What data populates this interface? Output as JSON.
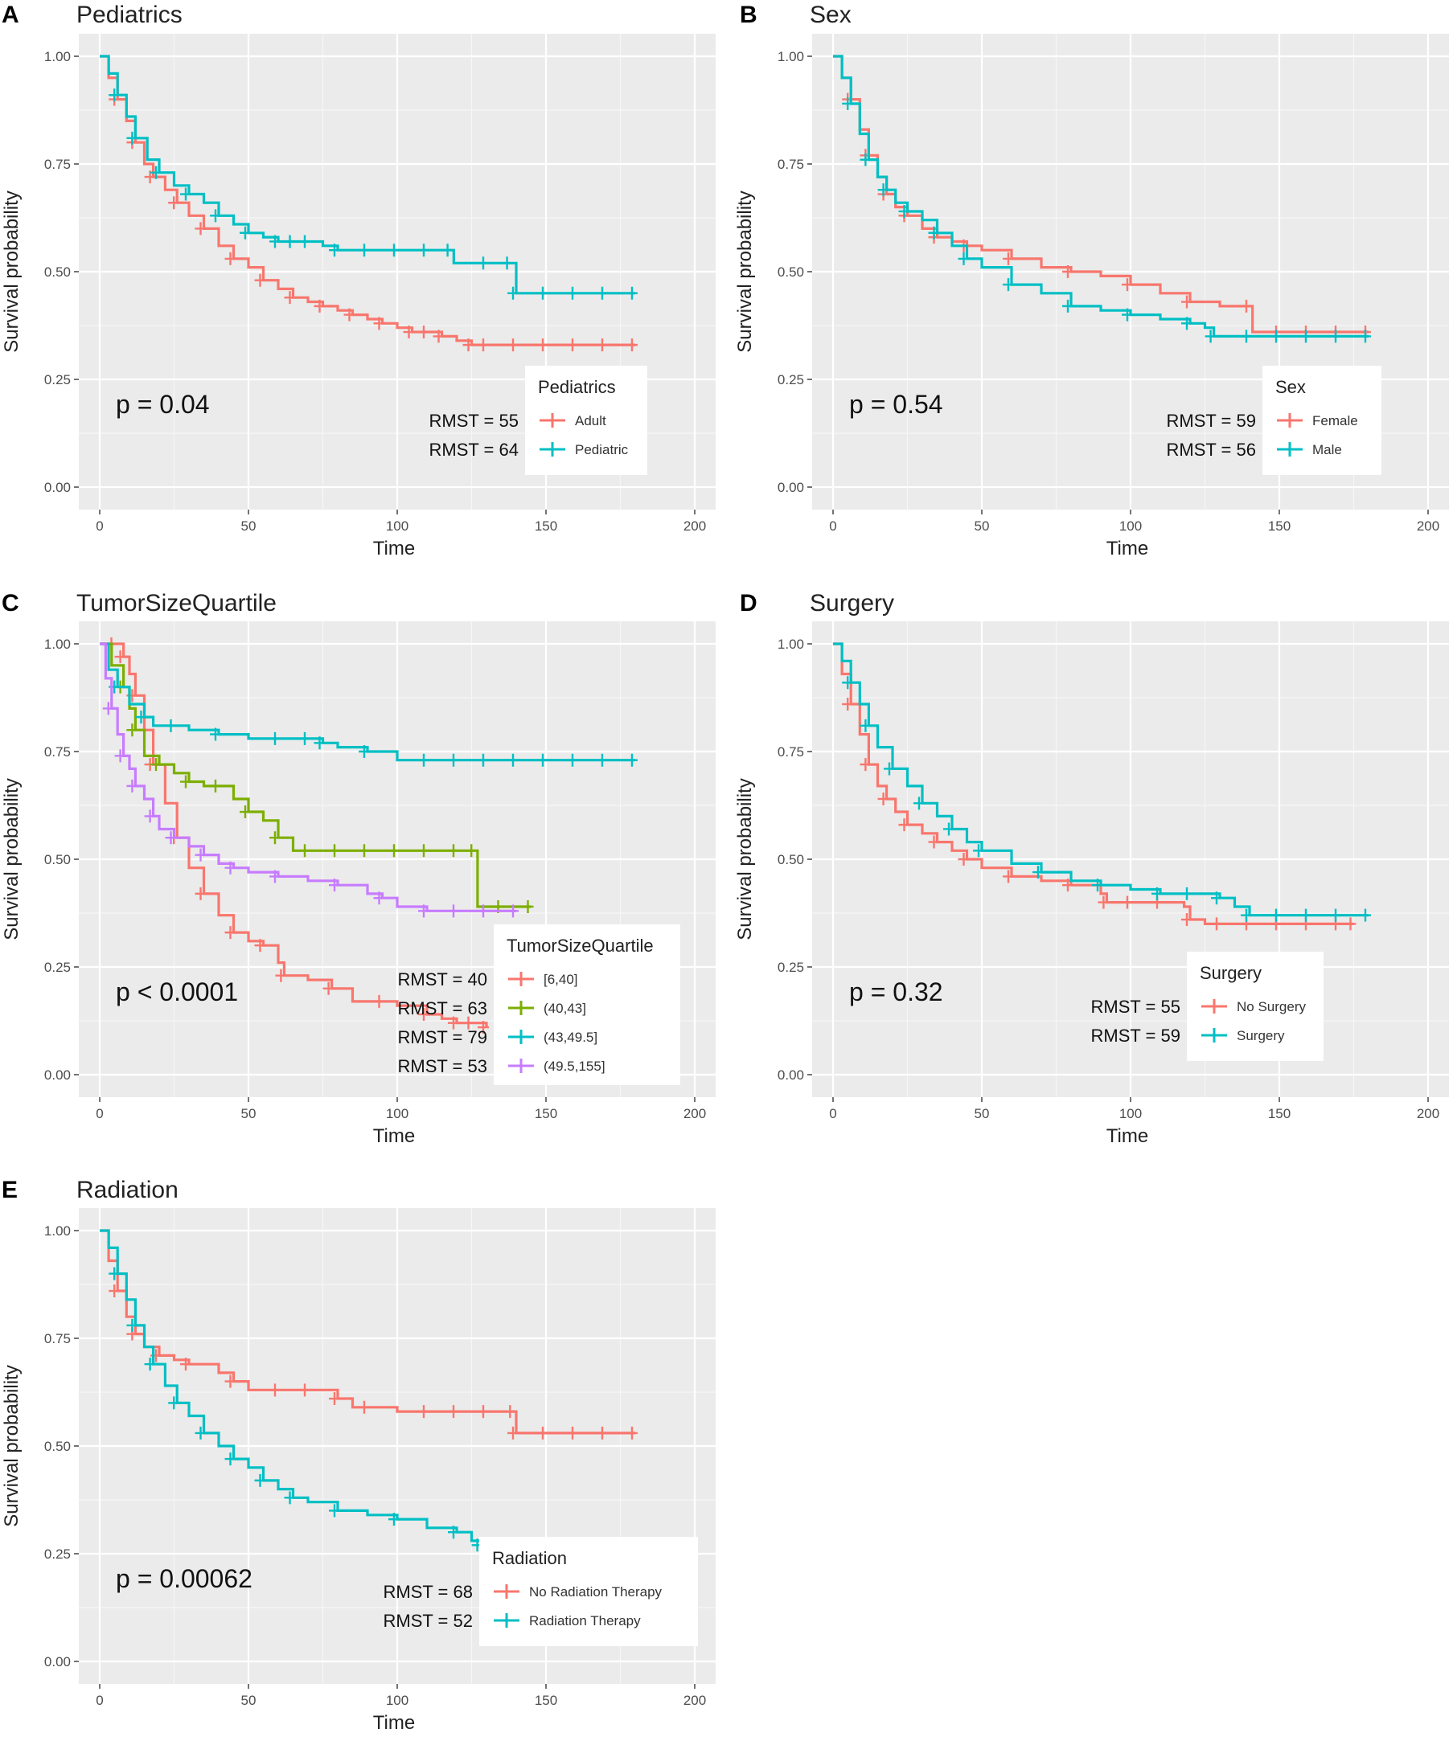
{
  "figure_type": "kaplan-meier",
  "common": {
    "xlabel": "Time",
    "ylabel": "Survival probability",
    "xlim": [
      0,
      200
    ],
    "ylim": [
      0,
      1
    ],
    "xticks": [
      "0",
      "50",
      "100",
      "150",
      "200"
    ],
    "yticks": [
      "0.00",
      "0.25",
      "0.50",
      "0.75",
      "1.00"
    ],
    "colors": {
      "red": "#F8766D",
      "teal": "#00BFC4",
      "green": "#7CAE00",
      "purple": "#C77CFF"
    }
  },
  "chart_data": [
    {
      "panel": "A",
      "type": "line",
      "title": "Pediatrics",
      "pvalue": "p = 0.04",
      "legend_title": "Pediatrics",
      "series": [
        {
          "name": "Adult",
          "rmst": "RMST = 55",
          "color": "#F8766D",
          "x": [
            0,
            3,
            6,
            9,
            12,
            15,
            18,
            22,
            26,
            30,
            35,
            40,
            45,
            50,
            55,
            60,
            65,
            70,
            75,
            80,
            85,
            90,
            95,
            100,
            105,
            110,
            115,
            120,
            125,
            130,
            140,
            150,
            160,
            170,
            180
          ],
          "y": [
            1.0,
            0.95,
            0.9,
            0.85,
            0.8,
            0.75,
            0.72,
            0.69,
            0.66,
            0.63,
            0.6,
            0.56,
            0.53,
            0.51,
            0.48,
            0.46,
            0.44,
            0.43,
            0.42,
            0.41,
            0.4,
            0.39,
            0.38,
            0.37,
            0.36,
            0.36,
            0.35,
            0.34,
            0.33,
            0.33,
            0.33,
            0.33,
            0.33,
            0.33,
            0.33
          ]
        },
        {
          "name": "Pediatric",
          "rmst": "RMST = 64",
          "color": "#00BFC4",
          "x": [
            0,
            3,
            6,
            9,
            12,
            16,
            20,
            25,
            30,
            35,
            40,
            45,
            50,
            55,
            60,
            65,
            70,
            75,
            80,
            90,
            100,
            110,
            118,
            119,
            130,
            138,
            140,
            150,
            160,
            170,
            180
          ],
          "y": [
            1.0,
            0.96,
            0.91,
            0.86,
            0.81,
            0.76,
            0.73,
            0.7,
            0.68,
            0.66,
            0.63,
            0.61,
            0.59,
            0.58,
            0.57,
            0.57,
            0.57,
            0.56,
            0.55,
            0.55,
            0.55,
            0.55,
            0.55,
            0.52,
            0.52,
            0.52,
            0.45,
            0.45,
            0.45,
            0.45,
            0.45
          ]
        }
      ]
    },
    {
      "panel": "B",
      "type": "line",
      "title": "Sex",
      "pvalue": "p = 0.54",
      "legend_title": "Sex",
      "series": [
        {
          "name": "Female",
          "rmst": "RMST = 59",
          "color": "#F8766D",
          "x": [
            0,
            3,
            6,
            9,
            12,
            15,
            18,
            21,
            25,
            30,
            35,
            40,
            45,
            50,
            60,
            70,
            80,
            90,
            100,
            110,
            120,
            130,
            140,
            141,
            150,
            160,
            170,
            180
          ],
          "y": [
            1.0,
            0.95,
            0.9,
            0.83,
            0.77,
            0.72,
            0.68,
            0.65,
            0.63,
            0.6,
            0.58,
            0.57,
            0.56,
            0.55,
            0.53,
            0.51,
            0.5,
            0.49,
            0.47,
            0.45,
            0.43,
            0.42,
            0.42,
            0.36,
            0.36,
            0.36,
            0.36,
            0.36
          ]
        },
        {
          "name": "Male",
          "rmst": "RMST = 56",
          "color": "#00BFC4",
          "x": [
            0,
            3,
            6,
            9,
            12,
            15,
            18,
            21,
            25,
            30,
            35,
            40,
            45,
            50,
            60,
            70,
            80,
            90,
            100,
            110,
            120,
            125,
            128,
            140,
            150,
            160,
            170,
            180
          ],
          "y": [
            1.0,
            0.95,
            0.89,
            0.82,
            0.76,
            0.72,
            0.69,
            0.66,
            0.64,
            0.62,
            0.59,
            0.56,
            0.53,
            0.51,
            0.47,
            0.45,
            0.42,
            0.41,
            0.4,
            0.39,
            0.38,
            0.37,
            0.35,
            0.35,
            0.35,
            0.35,
            0.35,
            0.35
          ]
        }
      ]
    },
    {
      "panel": "C",
      "type": "line",
      "title": "TumorSizeQuartile",
      "pvalue": "p < 0.0001",
      "legend_title": "TumorSizeQuartile",
      "series": [
        {
          "name": "[6,40]",
          "rmst": "RMST = 40",
          "color": "#F8766D",
          "x": [
            0,
            5,
            8,
            10,
            12,
            15,
            18,
            22,
            26,
            30,
            35,
            40,
            45,
            50,
            55,
            60,
            62,
            70,
            78,
            85,
            95,
            100,
            110,
            115,
            120,
            125,
            130
          ],
          "y": [
            1.0,
            1.0,
            0.97,
            0.93,
            0.88,
            0.8,
            0.72,
            0.63,
            0.55,
            0.48,
            0.42,
            0.37,
            0.33,
            0.31,
            0.3,
            0.26,
            0.23,
            0.22,
            0.2,
            0.17,
            0.17,
            0.16,
            0.14,
            0.13,
            0.12,
            0.12,
            0.11
          ]
        },
        {
          "name": "(40,43]",
          "rmst": "RMST = 63",
          "color": "#7CAE00",
          "x": [
            0,
            4,
            8,
            10,
            12,
            15,
            20,
            25,
            30,
            35,
            40,
            45,
            50,
            55,
            60,
            65,
            70,
            80,
            90,
            100,
            110,
            120,
            126,
            127,
            135,
            145
          ],
          "y": [
            1.0,
            0.95,
            0.9,
            0.85,
            0.8,
            0.74,
            0.72,
            0.7,
            0.68,
            0.67,
            0.67,
            0.64,
            0.61,
            0.59,
            0.55,
            0.52,
            0.52,
            0.52,
            0.52,
            0.52,
            0.52,
            0.52,
            0.52,
            0.39,
            0.39,
            0.39
          ]
        },
        {
          "name": "(43,49.5]",
          "rmst": "RMST = 79",
          "color": "#00BFC4",
          "x": [
            0,
            3,
            6,
            10,
            15,
            18,
            25,
            30,
            40,
            50,
            60,
            70,
            75,
            80,
            90,
            100,
            110,
            120,
            130,
            140,
            150,
            160,
            170,
            180
          ],
          "y": [
            1.0,
            0.94,
            0.9,
            0.86,
            0.83,
            0.81,
            0.81,
            0.8,
            0.79,
            0.78,
            0.78,
            0.78,
            0.77,
            0.76,
            0.75,
            0.73,
            0.73,
            0.73,
            0.73,
            0.73,
            0.73,
            0.73,
            0.73,
            0.73
          ]
        },
        {
          "name": "(49.5,155]",
          "rmst": "RMST = 53",
          "color": "#C77CFF",
          "x": [
            0,
            2,
            4,
            6,
            8,
            10,
            12,
            15,
            18,
            20,
            25,
            30,
            35,
            40,
            45,
            50,
            60,
            70,
            80,
            90,
            95,
            100,
            110,
            120,
            130,
            140
          ],
          "y": [
            1.0,
            0.92,
            0.85,
            0.79,
            0.74,
            0.71,
            0.67,
            0.64,
            0.6,
            0.57,
            0.55,
            0.53,
            0.51,
            0.49,
            0.48,
            0.47,
            0.46,
            0.45,
            0.44,
            0.42,
            0.41,
            0.39,
            0.38,
            0.38,
            0.38,
            0.38
          ]
        }
      ]
    },
    {
      "panel": "D",
      "type": "line",
      "title": "Surgery",
      "pvalue": "p = 0.32",
      "legend_title": "Surgery",
      "series": [
        {
          "name": "No Surgery",
          "rmst": "RMST = 55",
          "color": "#F8766D",
          "x": [
            0,
            3,
            6,
            9,
            12,
            15,
            18,
            21,
            25,
            30,
            35,
            40,
            45,
            50,
            60,
            70,
            80,
            90,
            92,
            100,
            110,
            118,
            120,
            125,
            130,
            140,
            150,
            160,
            170,
            175
          ],
          "y": [
            1.0,
            0.93,
            0.86,
            0.79,
            0.72,
            0.67,
            0.64,
            0.61,
            0.58,
            0.56,
            0.54,
            0.52,
            0.5,
            0.48,
            0.46,
            0.45,
            0.44,
            0.42,
            0.4,
            0.4,
            0.4,
            0.39,
            0.36,
            0.35,
            0.35,
            0.35,
            0.35,
            0.35,
            0.35,
            0.35
          ]
        },
        {
          "name": "Surgery",
          "rmst": "RMST = 59",
          "color": "#00BFC4",
          "x": [
            0,
            3,
            6,
            9,
            12,
            15,
            20,
            25,
            30,
            35,
            40,
            45,
            50,
            60,
            70,
            80,
            90,
            100,
            110,
            120,
            130,
            135,
            140,
            150,
            160,
            170,
            180
          ],
          "y": [
            1.0,
            0.96,
            0.91,
            0.86,
            0.81,
            0.76,
            0.71,
            0.67,
            0.63,
            0.6,
            0.57,
            0.54,
            0.52,
            0.49,
            0.47,
            0.45,
            0.44,
            0.43,
            0.42,
            0.42,
            0.41,
            0.39,
            0.37,
            0.37,
            0.37,
            0.37,
            0.37
          ]
        }
      ]
    },
    {
      "panel": "E",
      "type": "line",
      "title": "Radiation",
      "pvalue": "p = 0.00062",
      "legend_title": "Radiation",
      "series": [
        {
          "name": "No Radiation Therapy",
          "rmst": "RMST = 68",
          "color": "#F8766D",
          "x": [
            0,
            3,
            6,
            9,
            12,
            15,
            20,
            25,
            30,
            40,
            45,
            50,
            60,
            70,
            80,
            85,
            90,
            100,
            110,
            120,
            130,
            139,
            140,
            150,
            160,
            170,
            180
          ],
          "y": [
            1.0,
            0.93,
            0.86,
            0.8,
            0.76,
            0.73,
            0.71,
            0.7,
            0.69,
            0.67,
            0.65,
            0.63,
            0.63,
            0.63,
            0.61,
            0.59,
            0.59,
            0.58,
            0.58,
            0.58,
            0.58,
            0.58,
            0.53,
            0.53,
            0.53,
            0.53,
            0.53
          ]
        },
        {
          "name": "Radiation Therapy",
          "rmst": "RMST = 52",
          "color": "#00BFC4",
          "x": [
            0,
            3,
            6,
            9,
            12,
            15,
            18,
            22,
            26,
            30,
            35,
            40,
            45,
            50,
            55,
            60,
            65,
            70,
            80,
            90,
            100,
            110,
            120,
            125,
            128
          ],
          "y": [
            1.0,
            0.96,
            0.9,
            0.84,
            0.78,
            0.73,
            0.69,
            0.64,
            0.6,
            0.57,
            0.53,
            0.5,
            0.47,
            0.45,
            0.42,
            0.4,
            0.38,
            0.37,
            0.35,
            0.34,
            0.33,
            0.31,
            0.3,
            0.28,
            0.27
          ]
        }
      ]
    }
  ]
}
